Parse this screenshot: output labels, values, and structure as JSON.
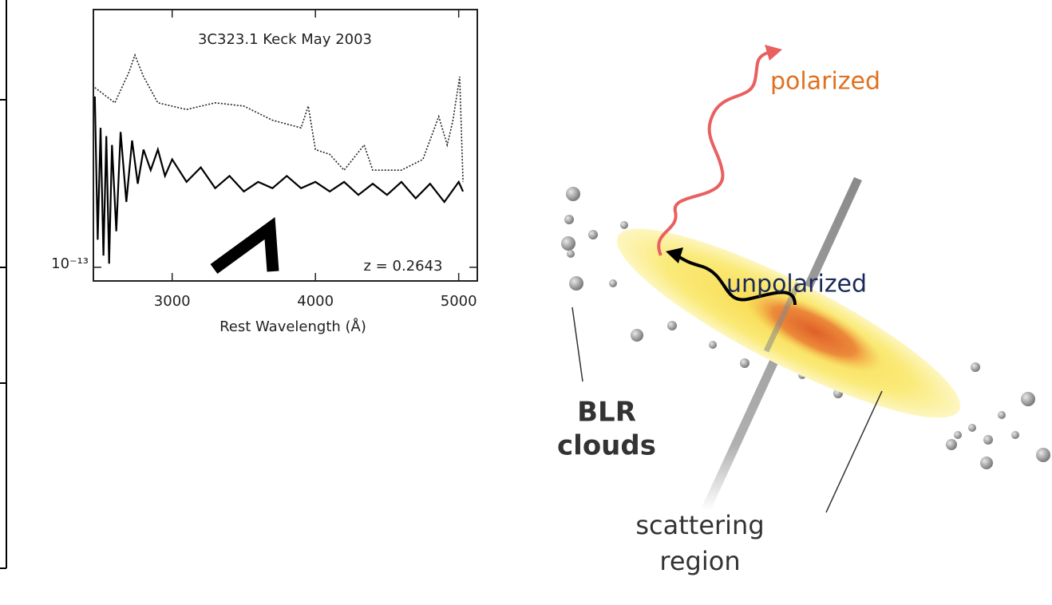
{
  "chart_data": {
    "type": "line",
    "title": "3C323.1   Keck May 2003",
    "xlabel": "Rest Wavelength (Å)",
    "annotation": "z = 0.2643",
    "yscale": "log",
    "xlim": [
      2450,
      5130
    ],
    "ylim": [
      8.95e-14,
      8.1e-13
    ],
    "xticks": [
      3000,
      4000,
      5000
    ],
    "yticks": [
      {
        "value": 1e-13,
        "label": "10⁻¹³"
      }
    ],
    "series": [
      {
        "color": "#222222",
        "style": "dotted",
        "x": [
          2460,
          2600,
          2700,
          2740,
          2800,
          2900,
          3100,
          3300,
          3500,
          3700,
          3900,
          3950,
          4000,
          4100,
          4200,
          4340,
          4400,
          4600,
          4750,
          4861,
          4920,
          4960,
          5007,
          5030
        ],
        "values": [
          4.3e-13,
          3.8e-13,
          4.9e-13,
          5.6e-13,
          4.7e-13,
          3.8e-13,
          3.6e-13,
          3.8e-13,
          3.7e-13,
          3.3e-13,
          3.1e-13,
          3.7e-13,
          2.6e-13,
          2.5e-13,
          2.2e-13,
          2.7e-13,
          2.2e-13,
          2.2e-13,
          2.4e-13,
          3.4e-13,
          2.7e-13,
          3.3e-13,
          4.7e-13,
          2e-13
        ]
      },
      {
        "color": "#000000",
        "style": "solid",
        "x": [
          2460,
          2480,
          2500,
          2520,
          2540,
          2560,
          2580,
          2610,
          2640,
          2680,
          2720,
          2760,
          2800,
          2850,
          2900,
          2950,
          3000,
          3100,
          3200,
          3300,
          3400,
          3500,
          3600,
          3700,
          3800,
          3900,
          4000,
          4100,
          4200,
          4300,
          4400,
          4500,
          4600,
          4700,
          4800,
          4900,
          5000,
          5030
        ],
        "values": [
          4e-13,
          1.25e-13,
          3.1e-13,
          1.1e-13,
          2.9e-13,
          1.03e-13,
          2.7e-13,
          1.34e-13,
          3e-13,
          1.7e-13,
          2.8e-13,
          1.97e-13,
          2.6e-13,
          2.2e-13,
          2.6e-13,
          2.1e-13,
          2.4e-13,
          2e-13,
          2.25e-13,
          1.9e-13,
          2.1e-13,
          1.85e-13,
          2e-13,
          1.9e-13,
          2.1e-13,
          1.9e-13,
          2e-13,
          1.85e-13,
          2e-13,
          1.8e-13,
          1.97e-13,
          1.8e-13,
          2e-13,
          1.75e-13,
          1.97e-13,
          1.7e-13,
          2e-13,
          1.85e-13
        ]
      }
    ]
  },
  "diagram": {
    "labels": {
      "polarized": "polarized",
      "unpolarized": "unpolarized",
      "blr_1": "BLR",
      "blr_2": "clouds",
      "scattering_1": "scattering",
      "scattering_2": "region"
    }
  }
}
